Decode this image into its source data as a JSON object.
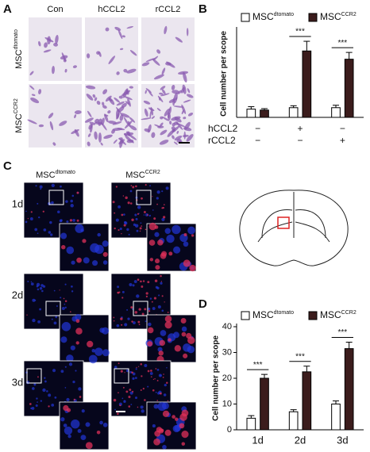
{
  "panel_a": {
    "letter": "A",
    "columns": [
      "Con",
      "hCCL2",
      "rCCL2"
    ],
    "rows": [
      {
        "main": "MSC",
        "sup": "dtomato"
      },
      {
        "main": "MSC",
        "sup": "CCR2"
      }
    ]
  },
  "panel_c": {
    "letter": "C",
    "columns": [
      {
        "main": "MSC",
        "sup": "dtomato"
      },
      {
        "main": "MSC",
        "sup": "CCR2"
      }
    ],
    "rows": [
      "1d",
      "2d",
      "3d"
    ]
  },
  "chart_data": [
    {
      "type": "bar",
      "panel": "B",
      "ylabel": "Cell number per scope",
      "ylim": [
        0,
        180
      ],
      "series": [
        {
          "name": "MSC",
          "name_sup": "dtomato",
          "color": "#ffffff",
          "values": [
            17,
            20,
            20
          ],
          "errors": [
            5,
            4,
            5
          ]
        },
        {
          "name": "MSC",
          "name_sup": "CCR2",
          "color": "#3b1c1c",
          "values": [
            15,
            137,
            120
          ],
          "errors": [
            3,
            20,
            14
          ]
        }
      ],
      "significance": [
        null,
        "***",
        "***"
      ],
      "conditions": [
        {
          "label": "hCCL2",
          "values": [
            "−",
            "+",
            "−"
          ]
        },
        {
          "label": "rCCL2",
          "values": [
            "−",
            "−",
            "+"
          ]
        }
      ]
    },
    {
      "type": "bar",
      "panel": "D",
      "ylabel": "Cell number per scope",
      "ylim": [
        0,
        40
      ],
      "yticks": [
        0,
        10,
        20,
        30,
        40
      ],
      "categories": [
        "1d",
        "2d",
        "3d"
      ],
      "series": [
        {
          "name": "MSC",
          "name_sup": "dtomato",
          "color": "#ffffff",
          "values": [
            4.5,
            7,
            10
          ],
          "errors": [
            1,
            0.8,
            1.2
          ]
        },
        {
          "name": "MSC",
          "name_sup": "CCR2",
          "color": "#3b1c1c",
          "values": [
            20,
            22.5,
            31.5
          ],
          "errors": [
            1.5,
            2.2,
            2.5
          ]
        }
      ],
      "significance": [
        "***",
        "***",
        "***"
      ]
    }
  ]
}
